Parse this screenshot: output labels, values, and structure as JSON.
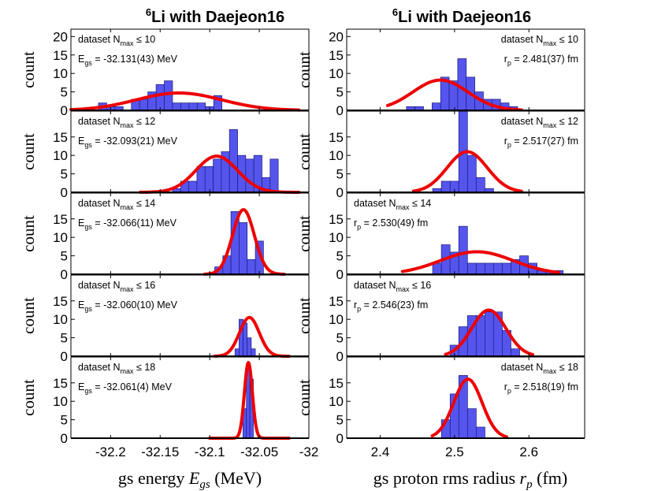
{
  "figure": {
    "colors": {
      "bar_fill": "#5555ee",
      "bar_edge": "#1a1a7a",
      "curve": "#ee0000",
      "axis": "#000000"
    }
  },
  "chart_data": [
    {
      "id": "energy",
      "type": "histogram",
      "title": "with Daejeon16",
      "title_sup": "6",
      "title_elem": "Li",
      "xlabel": "gs energy",
      "xlabel_sym": "E",
      "xlabel_sub": "gs",
      "xlabel_unit": "(MeV)",
      "ylabel": "count",
      "xlim": [
        -32.24,
        -32.0
      ],
      "xticks": [
        -32.2,
        -32.15,
        -32.1,
        -32.05,
        -32.0
      ],
      "xticklabels": [
        "-32.2",
        "-32.15",
        "-32.1",
        "-32.05",
        "-32"
      ],
      "panels": [
        {
          "id": "e10",
          "ylim": [
            0,
            22
          ],
          "yticks": [
            0,
            5,
            10,
            15,
            20
          ],
          "ann_pos": "top-left",
          "line1": "dataset N",
          "line1_sub": "max",
          "line1_rel": " ≤ 10",
          "line2_var": "E",
          "line2_sub": "gs",
          "line2_val": " = -32.131(43) MeV",
          "bins": {
            "start": -32.2205,
            "width": 0.0083,
            "counts": [
              0,
              2,
              1,
              1,
              0,
              3,
              3,
              5,
              7,
              8,
              2,
              2,
              2,
              2,
              1,
              4,
              0,
              0,
              0,
              0,
              0
            ]
          },
          "fit": {
            "mu": -32.131,
            "sigma": 0.043,
            "amp": 4.7,
            "xmin": -32.24,
            "xmax": -32.01
          }
        },
        {
          "id": "e12",
          "ylim": [
            0,
            22
          ],
          "yticks": [
            0,
            5,
            10,
            15
          ],
          "ann_pos": "top-left",
          "line1": "dataset N",
          "line1_sub": "max",
          "line1_rel": " ≤ 12",
          "line2_var": "E",
          "line2_sub": "gs",
          "line2_val": " = -32.093(21) MeV",
          "bins": {
            "start": -32.1375,
            "width": 0.0082,
            "counts": [
              1,
              3,
              3,
              7,
              7,
              9,
              11,
              17,
              10,
              9,
              10,
              4,
              9
            ]
          },
          "fit": {
            "mu": -32.093,
            "sigma": 0.021,
            "amp": 9.8,
            "xmin": -32.17,
            "xmax": -32.01
          }
        },
        {
          "id": "e14",
          "ylim": [
            0,
            22
          ],
          "yticks": [
            0,
            5,
            10,
            15
          ],
          "ann_pos": "top-left",
          "line1": "dataset N",
          "line1_sub": "max",
          "line1_rel": " ≤ 14",
          "line2_var": "E",
          "line2_sub": "gs",
          "line2_val": " = -32.066(11) MeV",
          "bins": {
            "start": -32.095,
            "width": 0.0082,
            "counts": [
              2,
              5,
              17,
              14,
              4,
              9
            ]
          },
          "fit": {
            "mu": -32.066,
            "sigma": 0.011,
            "amp": 17.5,
            "xmin": -32.105,
            "xmax": -32.025
          }
        },
        {
          "id": "e16",
          "ylim": [
            0,
            22
          ],
          "yticks": [
            0,
            5,
            10,
            15
          ],
          "ann_pos": "top-left",
          "line1": "dataset N",
          "line1_sub": "max",
          "line1_rel": " ≤ 16",
          "line2_var": "E",
          "line2_sub": "gs",
          "line2_val": " = -32.060(10) MeV",
          "bins": {
            "start": -32.0745,
            "width": 0.0041,
            "counts": [
              2,
              10,
              9,
              5,
              2
            ]
          },
          "fit": {
            "mu": -32.06,
            "sigma": 0.01,
            "amp": 10.5,
            "xmin": -32.095,
            "xmax": -32.02
          }
        },
        {
          "id": "e18",
          "ylim": [
            0,
            22
          ],
          "yticks": [
            0,
            5,
            10,
            15
          ],
          "ann_pos": "top-left",
          "line1": "dataset N",
          "line1_sub": "max",
          "line1_rel": " ≤ 18",
          "line2_var": "E",
          "line2_sub": "gs",
          "line2_val": " = -32.061(4) MeV",
          "bins": {
            "start": -32.0665,
            "width": 0.0035,
            "counts": [
              8,
              19,
              16
            ]
          },
          "fit": {
            "mu": -32.061,
            "sigma": 0.004,
            "amp": 20.5,
            "xmin": -32.1,
            "xmax": -32.02
          }
        }
      ]
    },
    {
      "id": "radius",
      "type": "histogram",
      "title": "with Daejeon16",
      "title_sup": "6",
      "title_elem": "Li",
      "xlabel": "gs proton rms radius",
      "xlabel_sym": "r",
      "xlabel_sub": "p",
      "xlabel_unit": "(fm)",
      "ylabel": "count",
      "xlim": [
        2.355,
        2.675
      ],
      "xticks": [
        2.4,
        2.5,
        2.6
      ],
      "xticklabels": [
        "2.4",
        "2.5",
        "2.6"
      ],
      "panels": [
        {
          "id": "r10",
          "ylim": [
            0,
            22
          ],
          "yticks": [
            0,
            5,
            10,
            15,
            20
          ],
          "ann_pos": "top-right",
          "line1": "dataset N",
          "line1_sub": "max",
          "line1_rel": " ≤ 10",
          "line2_var": "r",
          "line2_sub": "p",
          "line2_val": " = 2.481(37) fm",
          "bins": {
            "start": 2.4353,
            "width": 0.0115,
            "counts": [
              1,
              1,
              0,
              2,
              9,
              8,
              14,
              9,
              5,
              3,
              3,
              2,
              1
            ]
          },
          "fit": {
            "mu": 2.481,
            "sigma": 0.037,
            "amp": 8.2,
            "xmin": 2.41,
            "xmax": 2.59
          }
        },
        {
          "id": "r12",
          "ylim": [
            0,
            22
          ],
          "yticks": [
            0,
            5,
            10,
            15
          ],
          "ann_pos": "top-right",
          "line1": "dataset N",
          "line1_sub": "max",
          "line1_rel": " ≤ 12",
          "line2_var": "r",
          "line2_sub": "p",
          "line2_val": " = 2.517(27) fm",
          "bins": {
            "start": 2.4706,
            "width": 0.0117,
            "counts": [
              1,
              3,
              3,
              22,
              10,
              4,
              1
            ]
          },
          "fit": {
            "mu": 2.517,
            "sigma": 0.027,
            "amp": 11.0,
            "xmin": 2.445,
            "xmax": 2.59
          }
        },
        {
          "id": "r14",
          "ylim": [
            0,
            22
          ],
          "yticks": [
            0,
            5,
            10,
            15
          ],
          "ann_pos": "top-left",
          "line1": "dataset N",
          "line1_sub": "max",
          "line1_rel": " ≤ 14",
          "line2_var": "r",
          "line2_sub": "p",
          "line2_val": " = 2.530(49) fm",
          "bins": {
            "start": 2.4706,
            "width": 0.0117,
            "counts": [
              3,
              8,
              6,
              13,
              3,
              3,
              3,
              3,
              3,
              4,
              5,
              3,
              1,
              1,
              1
            ]
          },
          "fit": {
            "mu": 2.53,
            "sigma": 0.049,
            "amp": 6.1,
            "xmin": 2.43,
            "xmax": 2.64
          }
        },
        {
          "id": "r16",
          "ylim": [
            0,
            22
          ],
          "yticks": [
            0,
            5,
            10,
            15
          ],
          "ann_pos": "top-left",
          "line1": "dataset N",
          "line1_sub": "max",
          "line1_rel": " ≤ 16",
          "line2_var": "r",
          "line2_sub": "p",
          "line2_val": " = 2.546(23) fm",
          "bins": {
            "start": 2.494,
            "width": 0.0117,
            "counts": [
              3,
              8,
              11,
              11,
              12,
              12,
              7,
              2
            ]
          },
          "fit": {
            "mu": 2.546,
            "sigma": 0.023,
            "amp": 12.5,
            "xmin": 2.488,
            "xmax": 2.605
          }
        },
        {
          "id": "r18",
          "ylim": [
            0,
            22
          ],
          "yticks": [
            0,
            5,
            10,
            15
          ],
          "ann_pos": "top-right",
          "line1": "dataset N",
          "line1_sub": "max",
          "line1_rel": " ≤ 18",
          "line2_var": "r",
          "line2_sub": "p",
          "line2_val": " = 2.518(19) fm",
          "bins": {
            "start": 2.4824,
            "width": 0.0117,
            "counts": [
              5,
              12,
              17,
              8,
              3
            ]
          },
          "fit": {
            "mu": 2.518,
            "sigma": 0.019,
            "amp": 16.0,
            "xmin": 2.47,
            "xmax": 2.57
          }
        }
      ]
    }
  ]
}
